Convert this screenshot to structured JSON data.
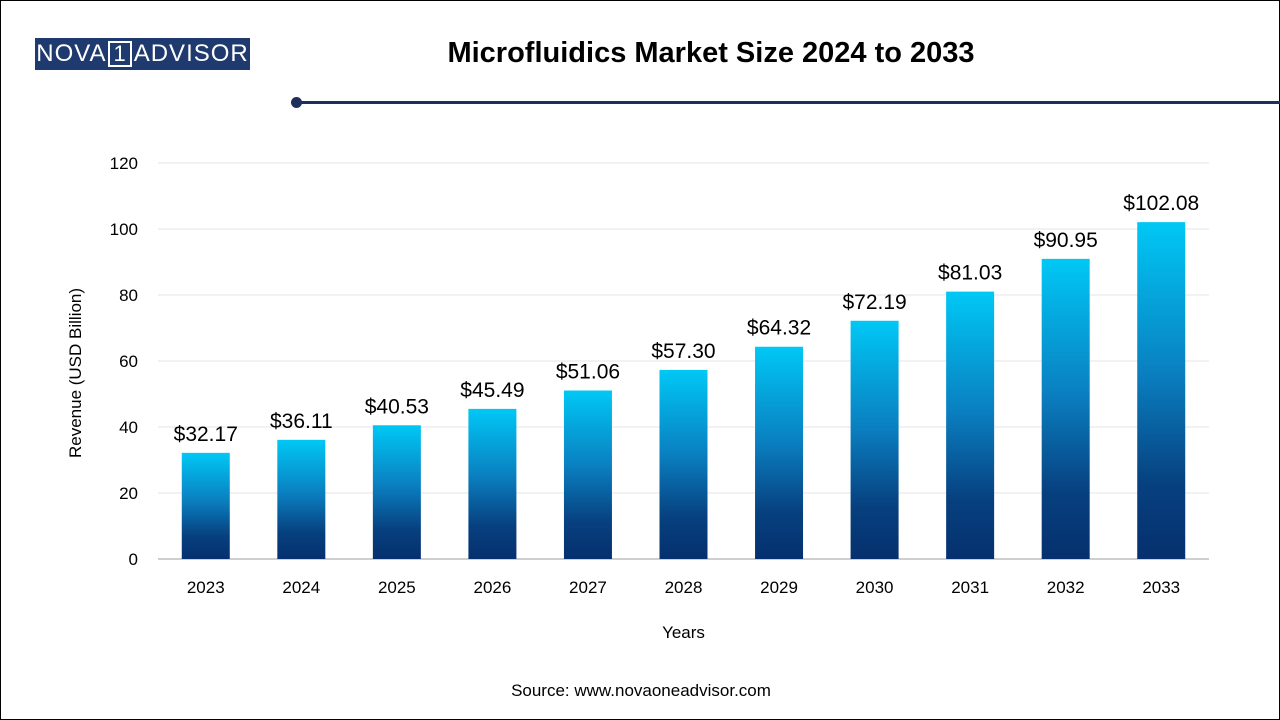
{
  "header": {
    "logo_text_left": "NOVA",
    "logo_text_box": "1",
    "logo_text_right": "ADVISOR",
    "title": "Microfluidics Market Size 2024 to 2033"
  },
  "footer": {
    "source": "Source: www.novaoneadvisor.com"
  },
  "colors": {
    "bar_top": "#00c8f5",
    "bar_bottom": "#06306e",
    "rule": "#1f2f5c",
    "logo_bg": "#1f3a6e"
  },
  "chart_data": {
    "type": "bar",
    "title": "Microfluidics Market Size 2024 to 2033",
    "xlabel": "Years",
    "ylabel": "Revenue (USD Billion)",
    "categories": [
      "2023",
      "2024",
      "2025",
      "2026",
      "2027",
      "2028",
      "2029",
      "2030",
      "2031",
      "2032",
      "2033"
    ],
    "values": [
      32.17,
      36.11,
      40.53,
      45.49,
      51.06,
      57.3,
      64.32,
      72.19,
      81.03,
      90.95,
      102.08
    ],
    "data_labels": [
      "$32.17",
      "$36.11",
      "$40.53",
      "$45.49",
      "$51.06",
      "$57.30",
      "$64.32",
      "$72.19",
      "$81.03",
      "$90.95",
      "$102.08"
    ],
    "yticks": [
      0,
      20,
      40,
      60,
      80,
      100,
      120
    ],
    "ylim": [
      0,
      120
    ],
    "grid": true,
    "legend": "none"
  }
}
